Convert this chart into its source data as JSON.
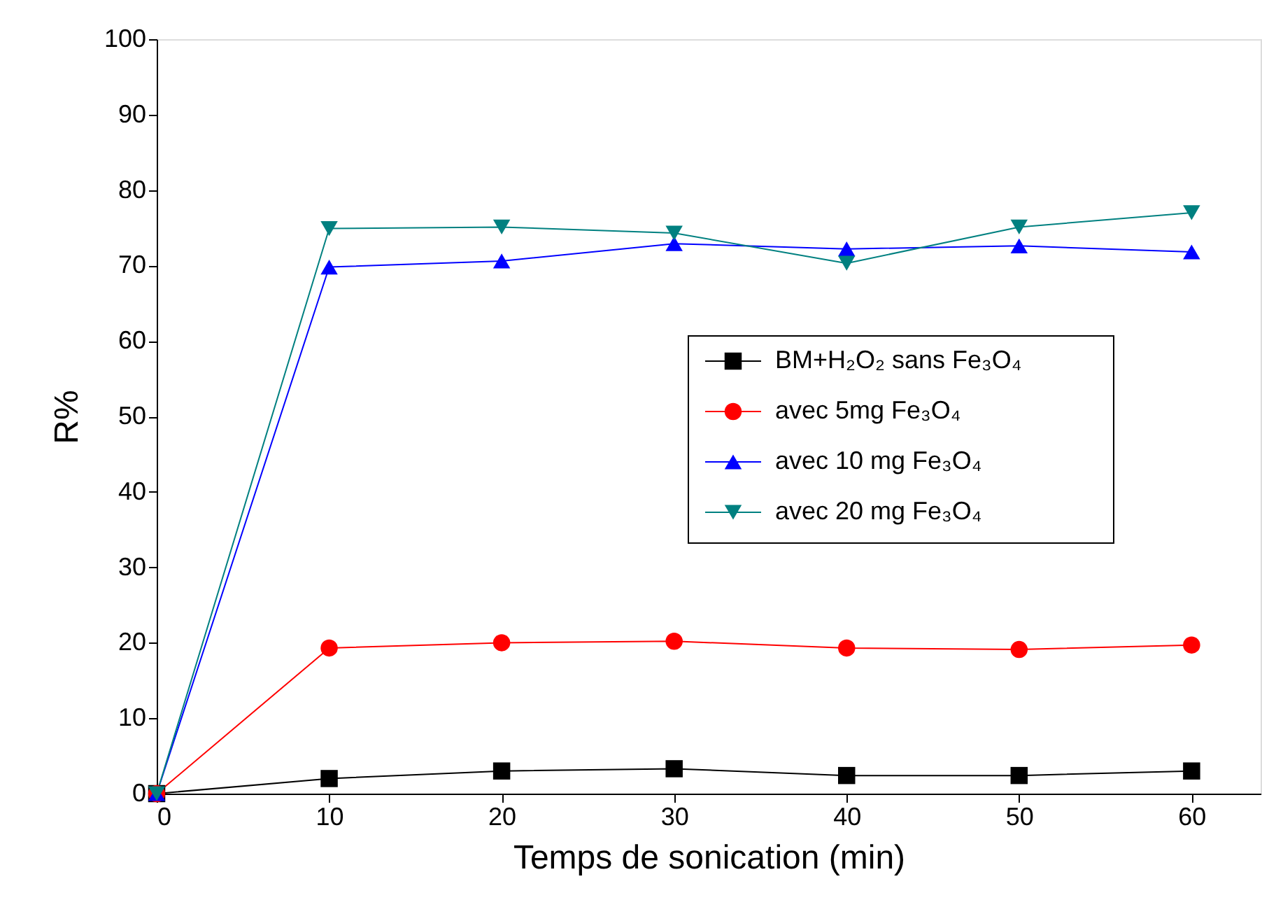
{
  "chart_data": {
    "type": "line",
    "xlabel": "Temps de sonication (min)",
    "ylabel": "R%",
    "x": [
      0,
      10,
      20,
      30,
      40,
      50,
      60
    ],
    "series": [
      {
        "name": "BM+H₂O₂ sans Fe₃O₄",
        "color": "#000000",
        "marker": "square",
        "values": [
          0,
          2.0,
          3.0,
          3.3,
          2.4,
          2.4,
          3.0
        ]
      },
      {
        "name": "avec 5mg Fe₃O₄",
        "color": "#ff0000",
        "marker": "circle",
        "values": [
          0,
          19.3,
          20.0,
          20.2,
          19.3,
          19.1,
          19.7
        ]
      },
      {
        "name": "avec 10 mg Fe₃O₄",
        "color": "#0000ff",
        "marker": "triangle",
        "values": [
          0,
          69.8,
          70.6,
          72.9,
          72.2,
          72.6,
          71.8
        ]
      },
      {
        "name": "avec 20 mg Fe₃O₄",
        "color": "#008080",
        "marker": "triangle-down",
        "values": [
          0,
          74.9,
          75.1,
          74.3,
          70.3,
          75.1,
          77.0
        ]
      }
    ],
    "xlim": [
      0,
      64
    ],
    "xticks": [
      0,
      10,
      20,
      30,
      40,
      50,
      60
    ],
    "ylim": [
      0,
      100
    ],
    "yticks": [
      0,
      10,
      20,
      30,
      40,
      50,
      60,
      70,
      80,
      90,
      100
    ],
    "grid": false,
    "legend": "right",
    "line_style": "solid"
  }
}
